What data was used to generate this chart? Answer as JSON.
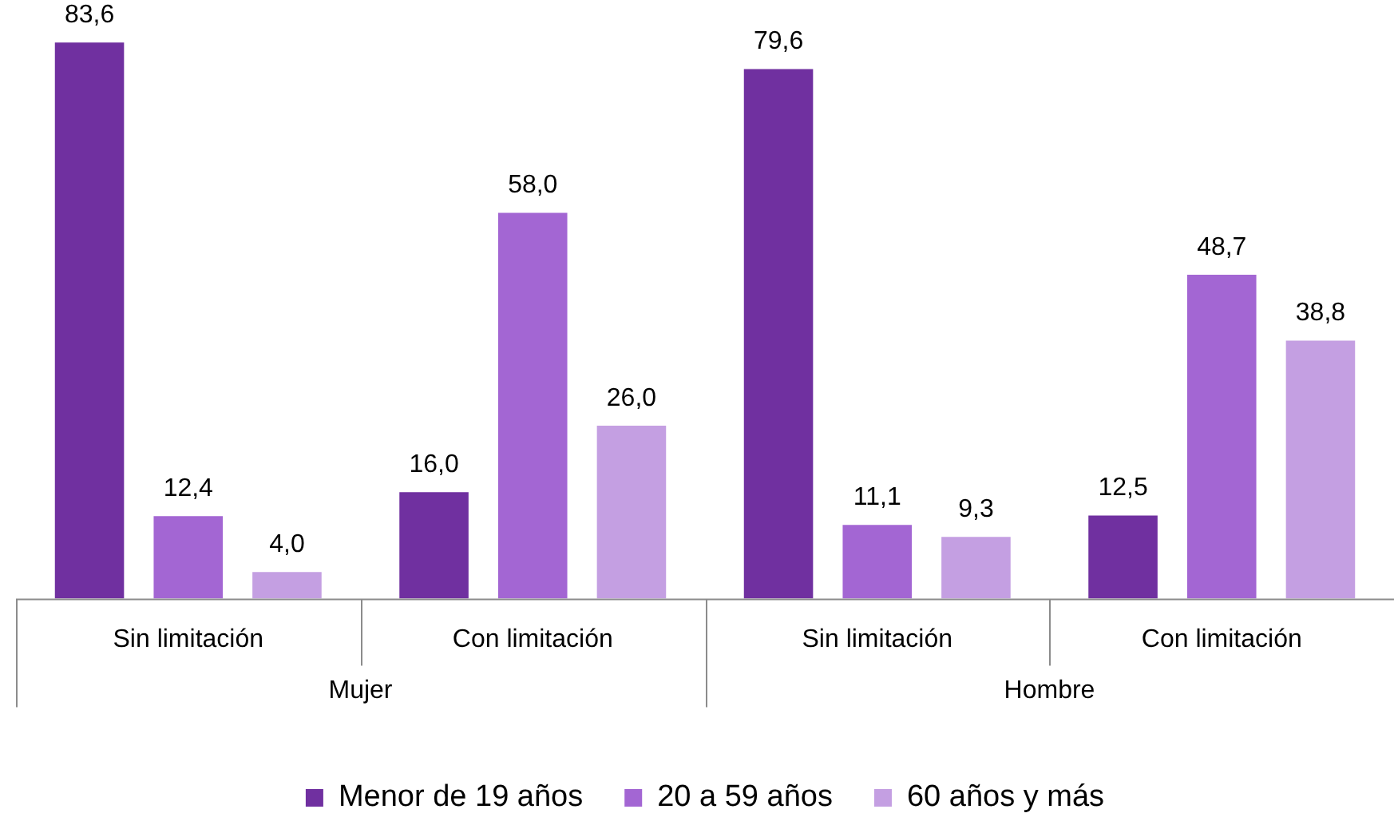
{
  "chart_data": {
    "type": "bar",
    "categories": [
      "Sin limitación",
      "Con limitación",
      "Sin limitación",
      "Con limitación"
    ],
    "series": [
      {
        "name": "Menor de 19 años",
        "color": "#7030a0",
        "values": [
          83.6,
          16.0,
          79.6,
          12.5
        ],
        "value_labels": [
          "83,6",
          "16,0",
          "79,6",
          "12,5"
        ]
      },
      {
        "name": "20 a 59 años",
        "color": "#a366d3",
        "values": [
          12.4,
          58.0,
          11.1,
          48.7
        ],
        "value_labels": [
          "12,4",
          "58,0",
          "11,1",
          "48,7"
        ]
      },
      {
        "name": "60 años y más",
        "color": "#c49fe2",
        "values": [
          4.0,
          26.0,
          9.3,
          38.8
        ],
        "value_labels": [
          "4,0",
          "26,0",
          "9,3",
          "38,8"
        ]
      }
    ],
    "annotations": [
      "Mujer",
      "Hombre"
    ],
    "legend": "bottom",
    "grid": false,
    "tick_labels": "x"
  }
}
